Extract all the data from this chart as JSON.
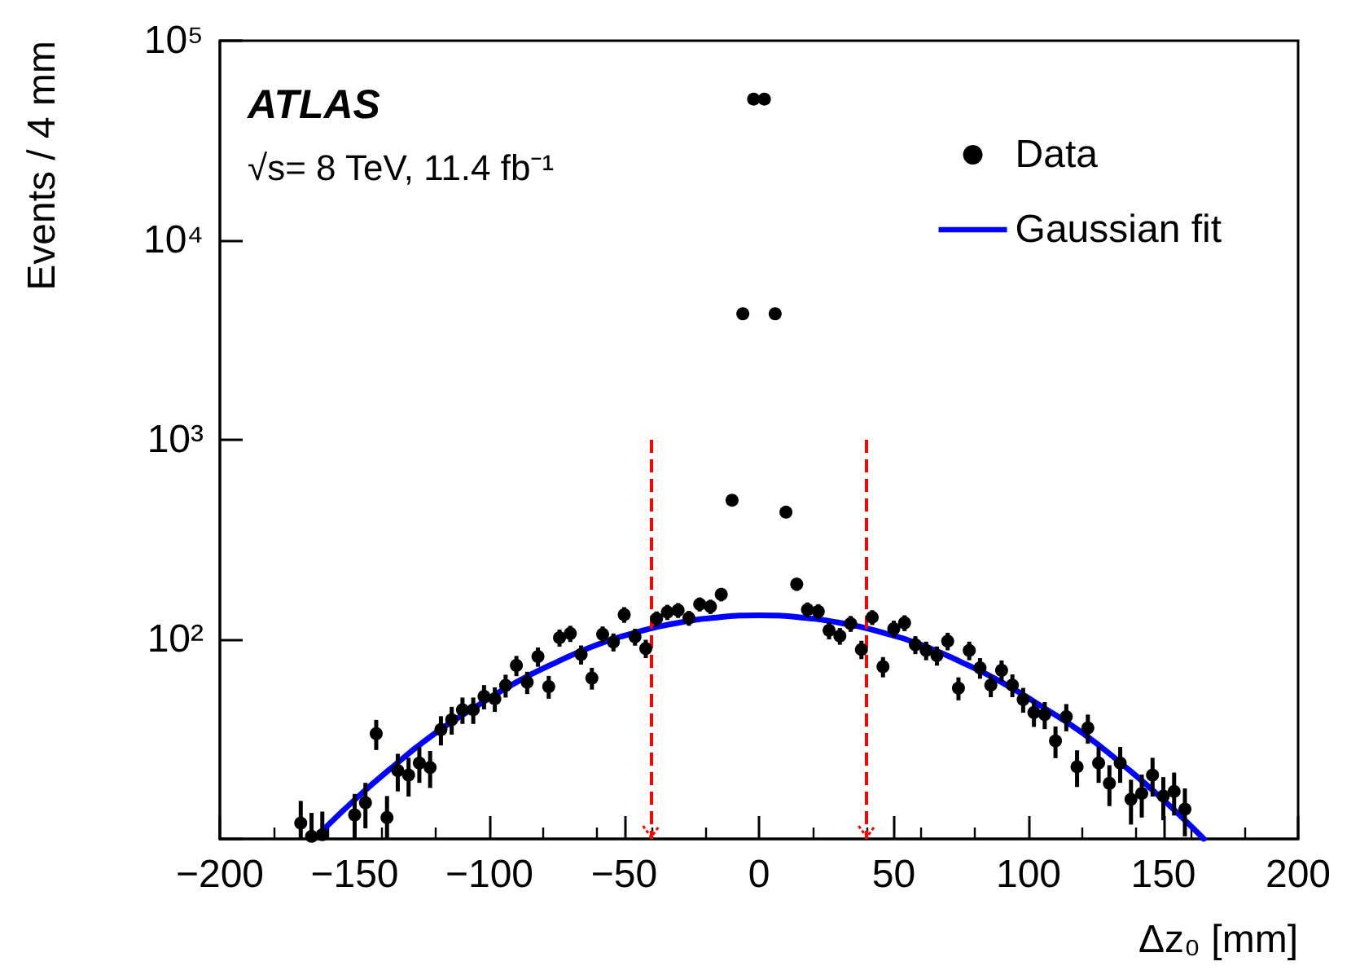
{
  "chart_data": {
    "type": "scatter",
    "xlabel": "Δz₀ [mm]",
    "ylabel": "Events / 4 mm",
    "annotations": [
      "ATLAS",
      "√s= 8 TeV, 11.4 fb⁻¹"
    ],
    "xlim": [
      -200,
      200
    ],
    "xticks": [
      {
        "value": -200,
        "label": "−200"
      },
      {
        "value": -150,
        "label": "−150"
      },
      {
        "value": -100,
        "label": "−100"
      },
      {
        "value": -50,
        "label": "−50"
      },
      0,
      50,
      100,
      150,
      200
    ],
    "ylim": [
      10,
      100000
    ],
    "log": true,
    "yticks": [
      {
        "value": 10,
        "label": null
      },
      {
        "value": 100,
        "label": "10²"
      },
      {
        "value": 1000,
        "label": "10³"
      },
      {
        "value": 10000,
        "label": "10⁴"
      },
      {
        "value": 100000,
        "label": "10⁵"
      }
    ],
    "grid": false,
    "legend": "top right",
    "marker": "circle",
    "series": [
      {
        "name": "Data",
        "color": "#000000",
        "x": [
          -170,
          -166,
          -162,
          -150,
          -146,
          -142,
          -138,
          -134,
          -130,
          -126,
          -122,
          -118,
          -114,
          -110,
          -106,
          -102,
          -98,
          -94,
          -90,
          -86,
          -82,
          -78,
          -74,
          -70,
          -66,
          -62,
          -58,
          -54,
          -50,
          -46,
          -42,
          -38,
          -34,
          -30,
          -26,
          -22,
          -18,
          -14,
          -10,
          -6,
          -2,
          2,
          6,
          10,
          14,
          18,
          22,
          26,
          30,
          34,
          38,
          42,
          46,
          50,
          54,
          58,
          62,
          66,
          70,
          74,
          78,
          82,
          86,
          90,
          94,
          98,
          102,
          106,
          110,
          114,
          118,
          122,
          126,
          130,
          134,
          138,
          142,
          146,
          150,
          154,
          158
        ],
        "values": [
          12,
          10.3,
          10.5,
          13.2,
          15.2,
          33.7,
          12.8,
          22,
          20.9,
          24,
          22.8,
          35.3,
          39.6,
          44.4,
          44.4,
          51.8,
          50.4,
          58.8,
          74,
          61,
          82,
          58,
          102,
          107,
          84,
          64,
          106,
          97,
          133,
          103,
          90,
          127,
          137,
          140,
          128,
          150,
          146,
          168,
          498,
          4280,
          51000,
          51000,
          4280,
          434,
          189,
          141,
          138,
          111,
          104,
          120,
          89,
          129,
          73,
          113,
          121,
          94,
          88,
          83,
          98,
          57,
          88,
          72,
          59,
          70,
          59,
          50,
          43,
          42,
          31,
          41,
          23,
          36,
          24,
          19,
          24,
          15.8,
          16.9,
          20.9,
          16.4,
          17.3,
          14.1
        ],
        "errors": [
          [
            10,
            15.5
          ],
          [
            10,
            13.5
          ],
          [
            10,
            13.7
          ],
          [
            10,
            16.8
          ],
          3.9,
          5.8,
          [
            10,
            16.4
          ],
          4.7,
          4.6,
          4.9,
          4.8,
          5.9,
          6.3,
          6.7,
          6.7,
          7.2,
          7.1,
          7.7,
          8.6,
          7.8,
          9.1,
          7.6,
          10,
          10,
          9.2,
          8,
          10,
          10,
          12,
          10,
          9.5,
          11,
          12,
          12,
          11,
          12,
          12,
          13,
          null,
          null,
          null,
          null,
          null,
          null,
          14,
          12,
          12,
          11,
          10,
          11,
          9.4,
          11,
          8.5,
          11,
          11,
          9.7,
          9.4,
          9.1,
          9.9,
          7.5,
          9.4,
          8.5,
          7.7,
          8.4,
          7.7,
          7.1,
          6.6,
          6.5,
          5.6,
          6.4,
          4.8,
          6,
          4.9,
          4.4,
          4.9,
          4,
          4.1,
          4.6,
          4,
          4.2,
          3.8
        ]
      },
      {
        "name": "Gaussian fit",
        "type": "line",
        "color": "#0000ff",
        "line_style": "solid",
        "marker": "none",
        "x": [
          -165,
          -150,
          -135,
          -120,
          -105,
          -90,
          -75,
          -60,
          -45,
          -30,
          -15,
          0,
          15,
          30,
          45,
          60,
          75,
          90,
          105,
          120,
          135,
          150,
          165
        ],
        "values": [
          10,
          15.7,
          23.5,
          34,
          46,
          61,
          77,
          94,
          109,
          121,
          129,
          132,
          129,
          121,
          109,
          94,
          77,
          61,
          46,
          34,
          23.5,
          15.7,
          10
        ]
      }
    ],
    "ref_lines": [
      {
        "axis": "x",
        "value": -40,
        "color": "#ff0000",
        "line_style": "dashed"
      },
      {
        "axis": "x",
        "value": 40,
        "color": "#ff0000",
        "line_style": "dashed"
      }
    ]
  }
}
